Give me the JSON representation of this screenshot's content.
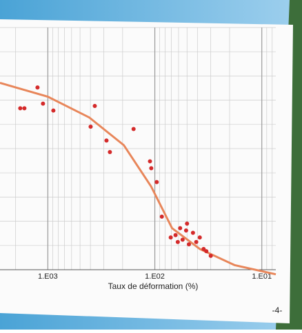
{
  "chart_data": {
    "type": "scatter",
    "xscale": "log",
    "grid": true,
    "xlabel": "Taux de déformation (%)",
    "page_number": "-4-",
    "xlim": [
      2800,
      7.4
    ],
    "ylim": [
      -0.05,
      1
    ],
    "xticks": [
      {
        "value": 1000,
        "label": "1.E03"
      },
      {
        "value": 100,
        "label": "1.E02"
      },
      {
        "value": 10,
        "label": "1.E01"
      }
    ],
    "series": [
      {
        "type": "line",
        "color": "#e8865a",
        "x": [
          2800,
          1000,
          410,
          195,
          108,
          69,
          38,
          18,
          7.4
        ],
        "values": [
          0.76,
          0.7,
          0.61,
          0.49,
          0.31,
          0.13,
          0.04,
          -0.03,
          -0.07
        ]
      },
      {
        "type": "scatter",
        "color": "#d42a2a",
        "x": [
          1811,
          1656,
          1249,
          1110,
          888,
          364,
          398,
          283,
          263,
          158,
          111,
          108,
          96,
          86,
          71,
          64,
          58,
          55,
          51,
          48,
          44,
          41,
          38,
          35,
          33,
          30,
          50,
          61
        ],
        "values": [
          0.65,
          0.65,
          0.74,
          0.67,
          0.64,
          0.66,
          0.57,
          0.51,
          0.46,
          0.56,
          0.42,
          0.39,
          0.33,
          0.18,
          0.09,
          0.1,
          0.13,
          0.08,
          0.12,
          0.06,
          0.11,
          0.07,
          0.09,
          0.04,
          0.03,
          0.01,
          0.15,
          0.07
        ]
      }
    ]
  }
}
